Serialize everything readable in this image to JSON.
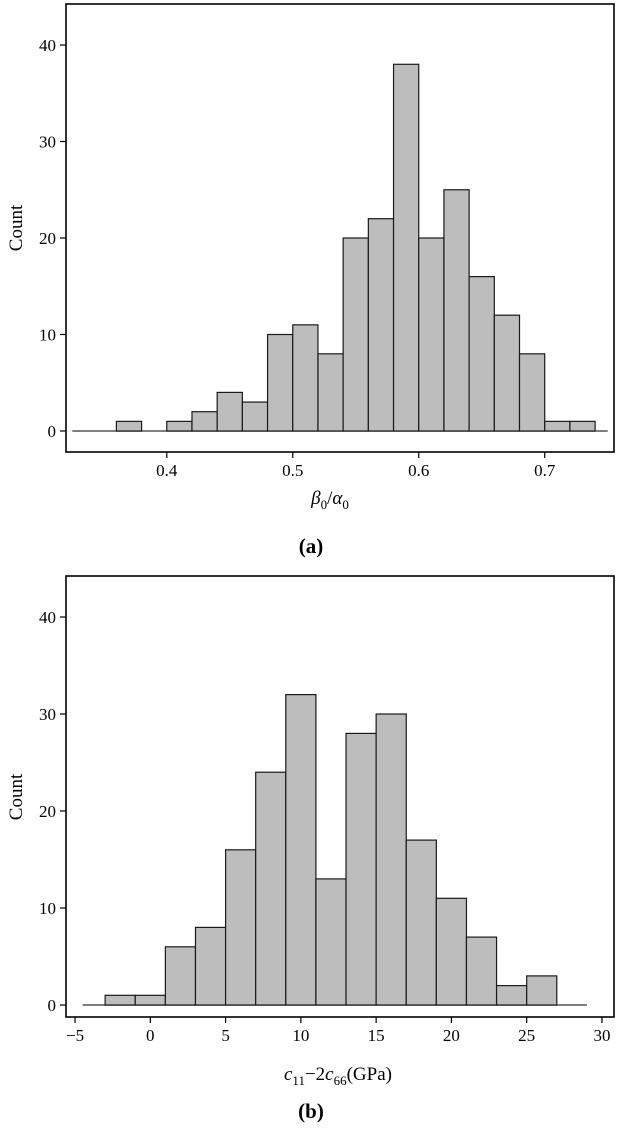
{
  "chart_data": [
    {
      "type": "bar",
      "panel": "(a)",
      "ylabel": "Count",
      "xlabel": {
        "main1": "β",
        "sub1": "0",
        "sep": "/",
        "main2": "α",
        "sub2": "0"
      },
      "ylim": [
        0,
        45
      ],
      "xlim": [
        0.32,
        0.755
      ],
      "xticks": [
        0.4,
        0.5,
        0.6,
        0.7
      ],
      "xtick_labels": [
        "0.4",
        "0.5",
        "0.6",
        "0.7"
      ],
      "yticks": [
        0,
        10,
        20,
        30,
        40
      ],
      "ytick_labels": [
        "0",
        "10",
        "20",
        "30",
        "40"
      ],
      "bin_width": 0.02,
      "bin_starts": [
        0.36,
        0.38,
        0.4,
        0.42,
        0.44,
        0.46,
        0.48,
        0.5,
        0.52,
        0.54,
        0.56,
        0.58,
        0.6,
        0.62,
        0.64,
        0.66,
        0.68,
        0.7,
        0.72
      ],
      "values": [
        1,
        0,
        1,
        2,
        4,
        3,
        10,
        11,
        8,
        20,
        22,
        38,
        20,
        25,
        16,
        12,
        8,
        1,
        1
      ],
      "baseline_range": [
        0.325,
        0.75
      ]
    },
    {
      "type": "bar",
      "panel": "(b)",
      "ylabel": "Count",
      "xlabel": {
        "c1": "c",
        "s1": "11",
        "op": "−2",
        "c2": "c",
        "s2": "66",
        "unit": "(GPa)"
      },
      "ylim": [
        0,
        45
      ],
      "xlim": [
        -5.6,
        30.8
      ],
      "xticks": [
        -5,
        0,
        5,
        10,
        15,
        20,
        25,
        30
      ],
      "xtick_labels": [
        "−5",
        "0",
        "5",
        "10",
        "15",
        "20",
        "25",
        "30"
      ],
      "yticks": [
        0,
        10,
        20,
        30,
        40
      ],
      "ytick_labels": [
        "0",
        "10",
        "20",
        "30",
        "40"
      ],
      "bin_width": 2,
      "bin_starts": [
        -3,
        -1,
        1,
        3,
        5,
        7,
        9,
        11,
        13,
        15,
        17,
        19,
        21,
        23,
        25
      ],
      "values": [
        1,
        1,
        6,
        8,
        16,
        24,
        32,
        13,
        28,
        30,
        17,
        11,
        7,
        2,
        3
      ],
      "baseline_range": [
        -4.5,
        29
      ]
    }
  ]
}
